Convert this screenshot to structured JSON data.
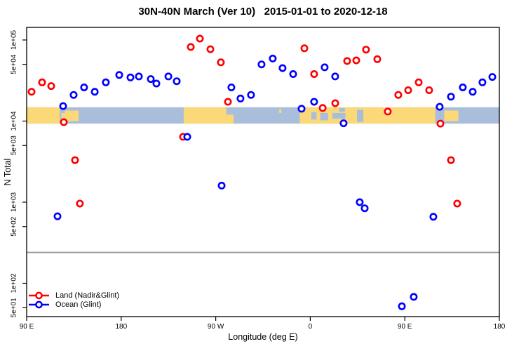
{
  "title": "30N-40N March (Ver 10)   2015-01-01 to 2020-12-18",
  "axes": {
    "x_label": "Longitude (deg E)",
    "y_label": "N Total"
  },
  "legend": {
    "items": [
      {
        "label": "Land (Nadir&Glint)",
        "color": "#ff0000"
      },
      {
        "label": "Ocean (Glint)",
        "color": "#0000ff"
      }
    ]
  },
  "chart_data": {
    "type": "scatter",
    "title": "30N-40N March (Ver 10)   2015-01-01 to 2020-12-18",
    "xlabel": "Longitude (deg E)",
    "ylabel": "N Total",
    "x_axis": {
      "xlim": [
        90,
        540
      ],
      "note": "longitude wraps eastward: 90E,180,90W,0,90E,180",
      "ticks": [
        {
          "lon": 90,
          "label": "90 E"
        },
        {
          "lon": 180,
          "label": "180"
        },
        {
          "lon": 270,
          "label": "90 W"
        },
        {
          "lon": 360,
          "label": "0"
        },
        {
          "lon": 450,
          "label": "90 E"
        },
        {
          "lon": 540,
          "label": "180"
        }
      ]
    },
    "y_axis": {
      "scale": "log",
      "ylim": [
        38.8,
        143000
      ],
      "ticks": [
        {
          "value": 100000,
          "label": "1e+05"
        },
        {
          "value": 50000,
          "label": "5e+04"
        },
        {
          "value": 10000,
          "label": "1e+04"
        },
        {
          "value": 5000,
          "label": "5e+03"
        },
        {
          "value": 1000,
          "label": "1e+03"
        },
        {
          "value": 500,
          "label": "5e+02"
        },
        {
          "value": 100,
          "label": "1e+02"
        },
        {
          "value": 50,
          "label": "5e+01"
        }
      ]
    },
    "threshold_line": {
      "value": 240,
      "color": "#9a9a9a"
    },
    "map_band": {
      "v_top": 14800,
      "v_bottom": 9300,
      "ocean_color": "#a9bedb",
      "land_color": "#fbd878",
      "land_segments": [
        {
          "from": 90,
          "to": 121.5
        },
        {
          "from": 123,
          "to": 126.5,
          "t": 0.35,
          "b": 0.8
        },
        {
          "from": 126.5,
          "to": 139.5,
          "t": 0.2,
          "b": 0.85
        },
        {
          "from": 239.5,
          "to": 280
        },
        {
          "from": 280,
          "to": 287,
          "t": 0.45,
          "b": 1
        },
        {
          "from": 330.5,
          "to": 332.5,
          "t": 0.1,
          "b": 0.35
        },
        {
          "from": 350,
          "to": 356,
          "t": 0.3,
          "b": 1
        },
        {
          "from": 355,
          "to": 479
        },
        {
          "from": 487.5,
          "to": 501,
          "t": 0.2,
          "b": 0.85
        }
      ],
      "ocean_patches": [
        {
          "from": 361,
          "to": 366,
          "t": 0.3,
          "b": 0.75
        },
        {
          "from": 369.5,
          "to": 377,
          "t": 0.35,
          "b": 0.8
        },
        {
          "from": 381,
          "to": 393.5,
          "t": 0.35,
          "b": 0.7
        },
        {
          "from": 387.5,
          "to": 393,
          "t": 0.05,
          "b": 0.28
        },
        {
          "from": 404.5,
          "to": 410.5,
          "t": 0.15,
          "b": 0.9
        }
      ]
    },
    "series": [
      {
        "name": "Land (Nadir&Glint)",
        "color": "#ff0000",
        "points": [
          [
            94.7,
            23000
          ],
          [
            104.7,
            30000
          ],
          [
            113.4,
            27000
          ],
          [
            125.4,
            9700
          ],
          [
            136.1,
            3300
          ],
          [
            140.7,
            960
          ],
          [
            238.9,
            6400
          ],
          [
            246.2,
            82000
          ],
          [
            254.9,
            104000
          ],
          [
            264.9,
            77000
          ],
          [
            274.9,
            53000
          ],
          [
            281.6,
            17300
          ],
          [
            354.4,
            79000
          ],
          [
            363.7,
            38000
          ],
          [
            371.8,
            14500
          ],
          [
            383.8,
            16600
          ],
          [
            395.1,
            55000
          ],
          [
            403.8,
            56000
          ],
          [
            413.1,
            76000
          ],
          [
            423.8,
            58000
          ],
          [
            433.8,
            13100
          ],
          [
            443.8,
            21000
          ],
          [
            453.2,
            24000
          ],
          [
            463.2,
            30000
          ],
          [
            473.2,
            24000
          ],
          [
            483.9,
            9300
          ],
          [
            493.9,
            3300
          ],
          [
            499.9,
            960
          ]
        ]
      },
      {
        "name": "Ocean (Glint)",
        "color": "#0000ff",
        "points": [
          [
            124.7,
            15300
          ],
          [
            134.7,
            21000
          ],
          [
            144.7,
            26000
          ],
          [
            154.8,
            23000
          ],
          [
            165.4,
            30000
          ],
          [
            178.1,
            37000
          ],
          [
            188.8,
            34500
          ],
          [
            196.8,
            35500
          ],
          [
            208.2,
            33000
          ],
          [
            213.5,
            29000
          ],
          [
            224.9,
            35500
          ],
          [
            232.9,
            31000
          ],
          [
            242.9,
            6400
          ],
          [
            275.6,
            1600
          ],
          [
            284.9,
            26000
          ],
          [
            293.6,
            19000
          ],
          [
            303.6,
            21000
          ],
          [
            313.6,
            50000
          ],
          [
            324.3,
            59000
          ],
          [
            333.6,
            45000
          ],
          [
            343.7,
            38000
          ],
          [
            351.7,
            14200
          ],
          [
            363.7,
            17300
          ],
          [
            373.7,
            46000
          ],
          [
            383.7,
            35500
          ],
          [
            391.7,
            9400
          ],
          [
            119.4,
            670
          ],
          [
            407.1,
            1000
          ],
          [
            411.8,
            840
          ],
          [
            477.2,
            660
          ],
          [
            483.2,
            15000
          ],
          [
            493.9,
            20000
          ],
          [
            505.2,
            26000
          ],
          [
            514.6,
            23000
          ],
          [
            523.9,
            30000
          ],
          [
            533.3,
            35000
          ],
          [
            447.2,
            52
          ],
          [
            458.5,
            68
          ]
        ]
      }
    ]
  }
}
